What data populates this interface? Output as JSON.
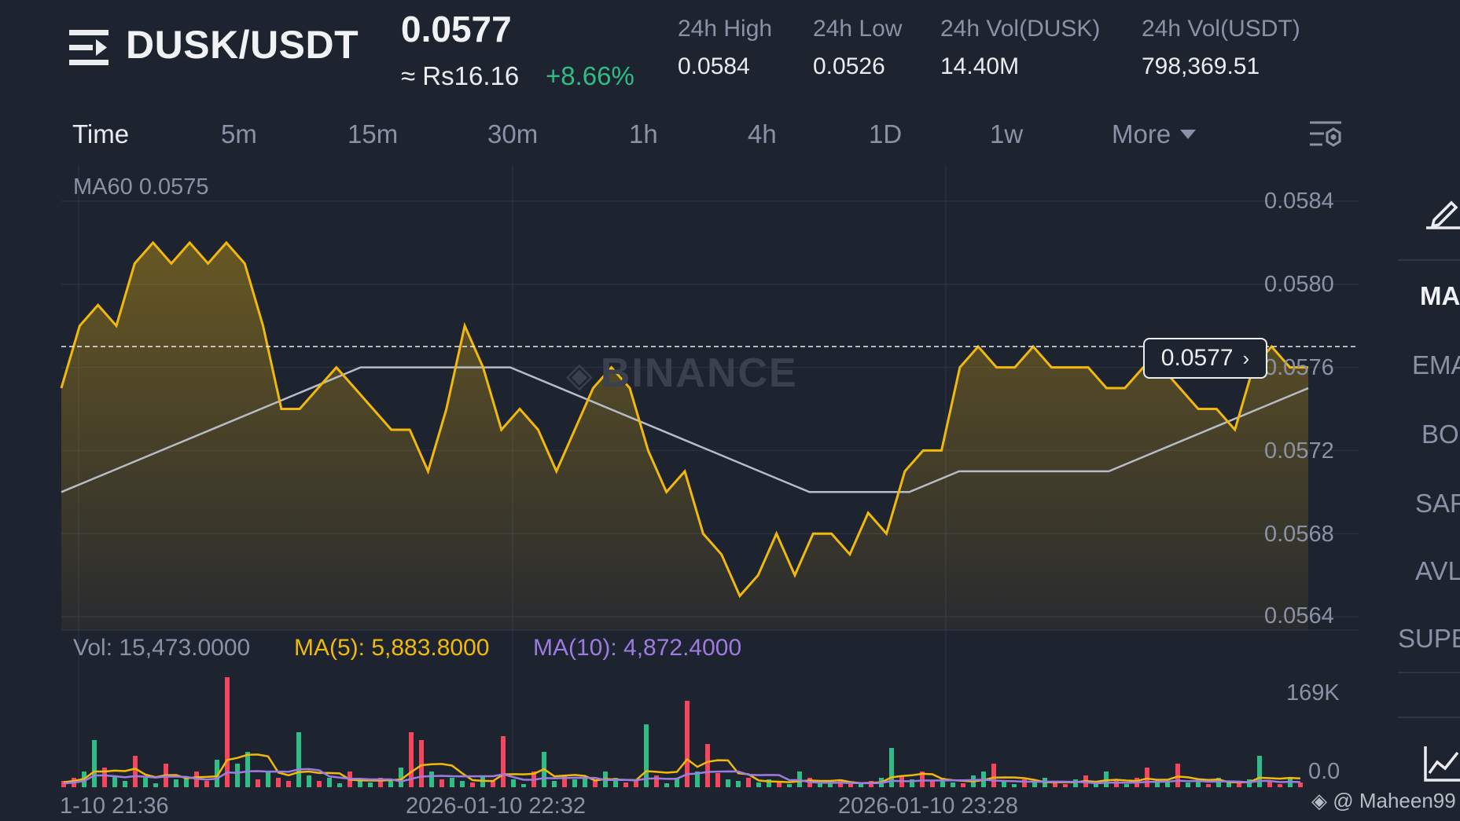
{
  "header": {
    "pair": "DUSK/USDT",
    "price": "0.0577",
    "approx": "≈ Rs16.16",
    "change": "+8.66%",
    "stats": [
      {
        "label": "24h High",
        "value": "0.0584"
      },
      {
        "label": "24h Low",
        "value": "0.0526"
      },
      {
        "label": "24h Vol(DUSK)",
        "value": "14.40M"
      },
      {
        "label": "24h Vol(USDT)",
        "value": "798,369.51"
      }
    ]
  },
  "timeframes": [
    "Time",
    "5m",
    "15m",
    "30m",
    "1h",
    "4h",
    "1D",
    "1w",
    "More"
  ],
  "indicators": [
    "MA",
    "EMA",
    "BOL",
    "SAR",
    "AVL",
    "SUPE"
  ],
  "chart": {
    "ma60_label": "MA60 0.0575",
    "watermark": "BINANCE",
    "current_tag": "0.0577",
    "price_ticks": [
      "0.0584",
      "0.0580",
      "0.0576",
      "0.0572",
      "0.0568",
      "0.0564"
    ],
    "volume": {
      "vol_label": "Vol: 15,473.0000",
      "ma5_label": "MA(5): 5,883.8000",
      "ma10_label": "MA(10): 4,872.4000",
      "ticks": [
        "169K",
        "0.0"
      ]
    },
    "time_labels": [
      "1-10 21:36",
      "2026-01-10 22:32",
      "2026-01-10 23:28"
    ],
    "credit": "@ Maheen99",
    "colors": {
      "line": "#f0b90b",
      "ma60": "#b7bdc6",
      "up": "#2ebd85",
      "down": "#f6465d",
      "ma10": "#9c7ce0"
    }
  },
  "chart_data": {
    "type": "line",
    "series": [
      {
        "values": [
          0.0575,
          0.0578,
          0.0579,
          0.0578,
          0.0581,
          0.0582,
          0.0581,
          0.0582,
          0.0581,
          0.0582,
          0.0581,
          0.0578,
          0.0574,
          0.0574,
          0.0575,
          0.0576,
          0.0575,
          0.0574,
          0.0573,
          0.0573,
          0.0571,
          0.0574,
          0.0578,
          0.0576,
          0.0573,
          0.0574,
          0.0573,
          0.0571,
          0.0573,
          0.0575,
          0.0576,
          0.0575,
          0.0572,
          0.057,
          0.0571,
          0.0568,
          0.0567,
          0.0565,
          0.0566,
          0.0568,
          0.0566,
          0.0568,
          0.0568,
          0.0567,
          0.0569,
          0.0568,
          0.0571,
          0.0572,
          0.0572,
          0.0576,
          0.0577,
          0.0576,
          0.0576,
          0.0577,
          0.0576,
          0.0576,
          0.0576,
          0.0575,
          0.0575,
          0.0576,
          0.0576,
          0.0575,
          0.0574,
          0.0574,
          0.0573,
          0.0576,
          0.0577,
          0.0576,
          0.0576
        ]
      },
      {
        "values": [
          0.057,
          0.0571,
          0.0572,
          0.0573,
          0.0574,
          0.0575,
          0.0576,
          0.0576,
          0.0576,
          0.0576,
          0.0575,
          0.0574,
          0.0573,
          0.0572,
          0.0571,
          0.057,
          0.057,
          0.057,
          0.0571,
          0.0571,
          0.0571,
          0.0571,
          0.0572,
          0.0573,
          0.0574,
          0.0575
        ]
      }
    ]
  }
}
